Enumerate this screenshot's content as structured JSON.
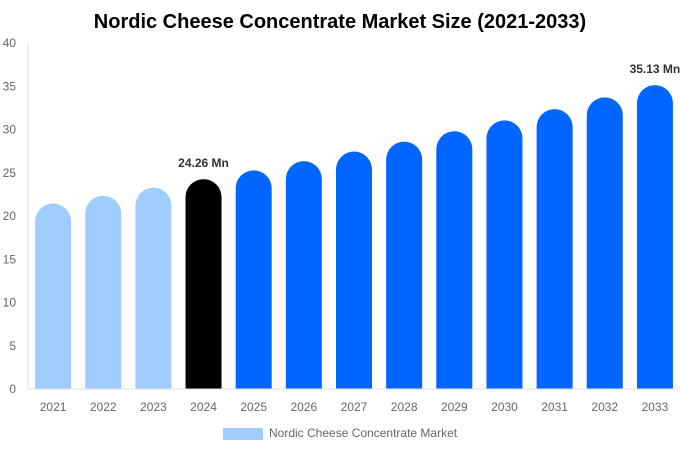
{
  "chart_data": {
    "type": "bar",
    "title": "Nordic Cheese Concentrate Market Size (2021-2033)",
    "xlabel": "",
    "ylabel": "",
    "ylim": [
      0,
      40
    ],
    "yticks": [
      0,
      5,
      10,
      15,
      20,
      25,
      30,
      35,
      40
    ],
    "grid": false,
    "legend_placement": "bottom",
    "categories": [
      "2021",
      "2022",
      "2023",
      "2024",
      "2025",
      "2026",
      "2027",
      "2028",
      "2029",
      "2030",
      "2031",
      "2032",
      "2033"
    ],
    "series": [
      {
        "name": "Nordic Cheese Concentrate Market",
        "values": [
          21.44,
          22.34,
          23.28,
          24.26,
          25.28,
          26.34,
          27.45,
          28.6,
          29.8,
          31.05,
          32.36,
          33.72,
          35.13
        ]
      }
    ],
    "bar_colors": [
      "#a0cdff",
      "#a0cdff",
      "#a0cdff",
      "#000000",
      "#0066ff",
      "#0066ff",
      "#0066ff",
      "#0066ff",
      "#0066ff",
      "#0066ff",
      "#0066ff",
      "#0066ff",
      "#0066ff"
    ],
    "legend_color": "#a0cdff",
    "data_labels": [
      {
        "category": "2024",
        "text": "24.26 Mn"
      },
      {
        "category": "2033",
        "text": "35.13 Mn"
      }
    ]
  }
}
